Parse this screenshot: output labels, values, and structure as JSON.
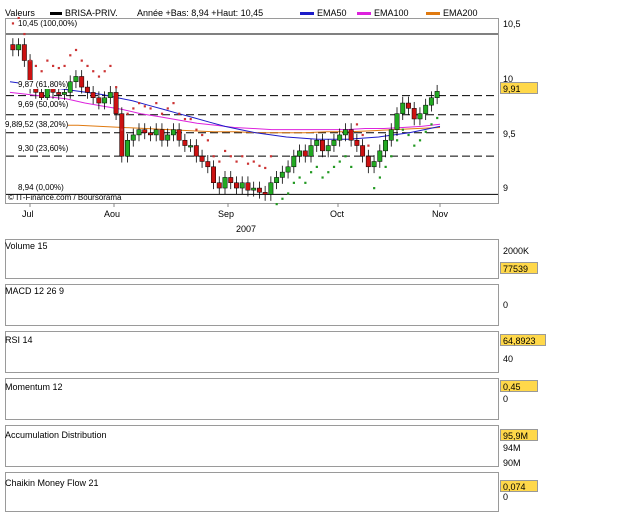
{
  "header": {
    "valeurs_label": "Valeurs",
    "ticker": "BRISA-PRIV.",
    "range_text": "Année +Bas: 8,94 +Haut: 10,45",
    "legend": [
      {
        "label": "EMA50",
        "color": "#1c1cc8"
      },
      {
        "label": "EMA100",
        "color": "#dd22dd"
      },
      {
        "label": "EMA200",
        "color": "#e07a10"
      }
    ]
  },
  "colors": {
    "up": "#22aa22",
    "down": "#cc1111",
    "sar": "#229922",
    "sar_down": "#cc3333"
  },
  "price": {
    "y_ticks": [
      "10,5",
      "10",
      "9,5",
      "9"
    ],
    "last_value": "9,91",
    "watermark": "© IT-Finance.com / Boursorama",
    "fib_levels": [
      {
        "label": "10,45 (100,00%)",
        "value": 10.45
      },
      {
        "label": "9,87 (61,80%)",
        "value": 9.87
      },
      {
        "label": "9,69 (50,00%)",
        "value": 9.69
      },
      {
        "label": "9,52 (38,20%)",
        "value": 9.52
      },
      {
        "label": "9,30 (23,60%)",
        "value": 9.3
      },
      {
        "label": "8,94 (0,00%)",
        "value": 8.94
      }
    ],
    "extra_label": "9,88"
  },
  "x_axis": {
    "months": [
      "Jul",
      "Aou",
      "Sep",
      "Oct",
      "Nov"
    ],
    "year": "2007"
  },
  "volume": {
    "title": "Volume 15",
    "ticks": [
      "2000K"
    ],
    "last_value": "77539"
  },
  "macd": {
    "title": "MACD 12 26 9",
    "ticks": [
      "0"
    ]
  },
  "rsi": {
    "title": "RSI 14",
    "ticks": [
      "40"
    ],
    "last_value": "64,8923"
  },
  "momentum": {
    "title": "Momentum 12",
    "ticks": [
      "0"
    ],
    "last_value": "0,45"
  },
  "accdist": {
    "title": "Accumulation Distribution",
    "ticks": [
      "94M",
      "90M"
    ],
    "last_value": "95,9M"
  },
  "cmf": {
    "title": "Chaikin Money Flow 21",
    "ticks": [
      "0"
    ],
    "last_value": "0,074"
  },
  "chart_data": {
    "type": "candlestick",
    "x_range": [
      "2007-07",
      "2007-11"
    ],
    "ylim": [
      8.85,
      10.6
    ],
    "closes": [
      10.3,
      10.35,
      10.2,
      9.95,
      9.9,
      9.85,
      9.95,
      9.9,
      9.88,
      9.9,
      10.0,
      10.05,
      9.95,
      9.9,
      9.85,
      9.8,
      9.85,
      9.9,
      9.7,
      9.3,
      9.45,
      9.5,
      9.55,
      9.52,
      9.5,
      9.55,
      9.45,
      9.5,
      9.55,
      9.45,
      9.4,
      9.4,
      9.3,
      9.25,
      9.2,
      9.05,
      9.0,
      9.1,
      9.05,
      9.0,
      9.05,
      8.98,
      9.0,
      8.96,
      8.94,
      9.05,
      9.1,
      9.15,
      9.2,
      9.3,
      9.35,
      9.3,
      9.4,
      9.45,
      9.35,
      9.4,
      9.45,
      9.5,
      9.55,
      9.45,
      9.4,
      9.3,
      9.2,
      9.25,
      9.35,
      9.45,
      9.55,
      9.7,
      9.8,
      9.75,
      9.65,
      9.7,
      9.78,
      9.85,
      9.91
    ],
    "ema50": [
      10.0,
      9.98,
      9.96,
      9.94,
      9.92,
      9.9,
      9.88,
      9.85,
      9.82,
      9.78,
      9.74,
      9.7,
      9.66,
      9.62,
      9.58,
      9.55,
      9.52,
      9.5,
      9.48,
      9.47,
      9.46,
      9.46,
      9.46,
      9.47,
      9.48,
      9.5,
      9.52,
      9.55,
      9.58
    ],
    "ema100": [
      9.9,
      9.88,
      9.86,
      9.84,
      9.8,
      9.77,
      9.74,
      9.7,
      9.67,
      9.64,
      9.61,
      9.59,
      9.57,
      9.56,
      9.55,
      9.55,
      9.55,
      9.55,
      9.55,
      9.56,
      9.56,
      9.57,
      9.58,
      9.6
    ],
    "ema200": [
      9.6,
      9.6,
      9.59,
      9.59,
      9.58,
      9.57,
      9.56,
      9.55,
      9.54,
      9.53,
      9.53,
      9.52,
      9.52,
      9.52,
      9.53,
      9.53,
      9.54,
      9.55,
      9.56,
      9.57
    ]
  }
}
